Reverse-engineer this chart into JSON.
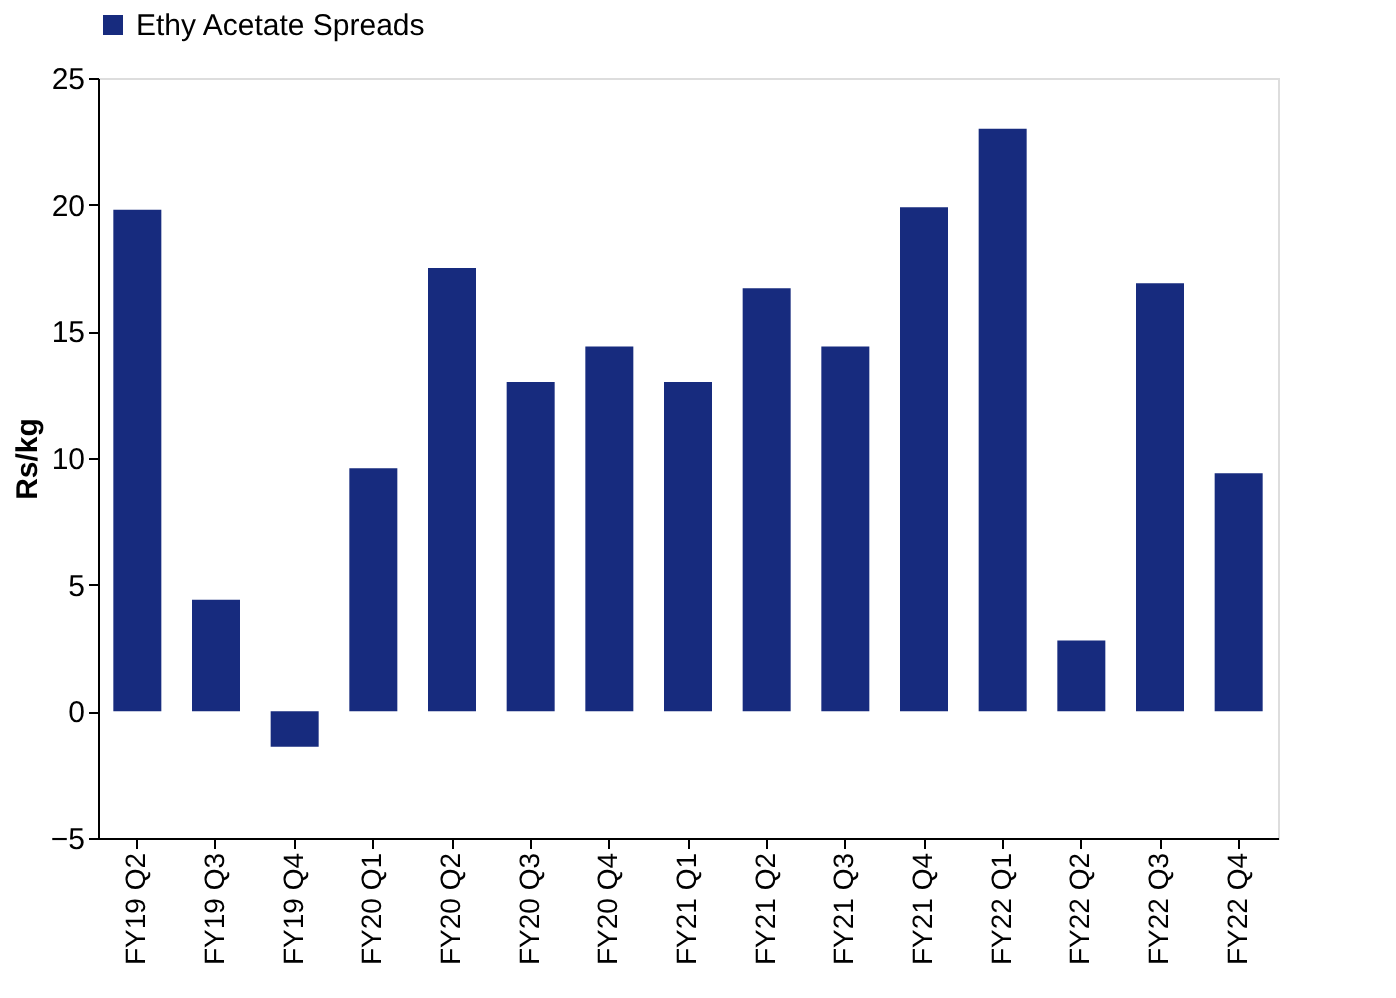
{
  "chart_data": {
    "type": "bar",
    "ylabel": "Rs/kg",
    "categories": [
      "FY19 Q2",
      "FY19 Q3",
      "FY19 Q4",
      "FY20 Q1",
      "FY20 Q2",
      "FY20 Q3",
      "FY20 Q4",
      "FY21 Q1",
      "FY21 Q2",
      "FY21 Q3",
      "FY21 Q4",
      "FY22 Q1",
      "FY22 Q2",
      "FY22 Q3",
      "FY22 Q4"
    ],
    "series": [
      {
        "name": "Ethy Acetate Spreads",
        "color": "#172b7e",
        "values": [
          19.8,
          4.4,
          -1.4,
          9.6,
          17.5,
          13.0,
          14.4,
          13.0,
          16.7,
          14.4,
          19.9,
          23.0,
          2.8,
          16.9,
          9.4
        ]
      }
    ],
    "ylim": [
      -5,
      25
    ],
    "yticks": [
      -5,
      0,
      5,
      10,
      15,
      20,
      25
    ],
    "grid": false,
    "legend": "top"
  }
}
